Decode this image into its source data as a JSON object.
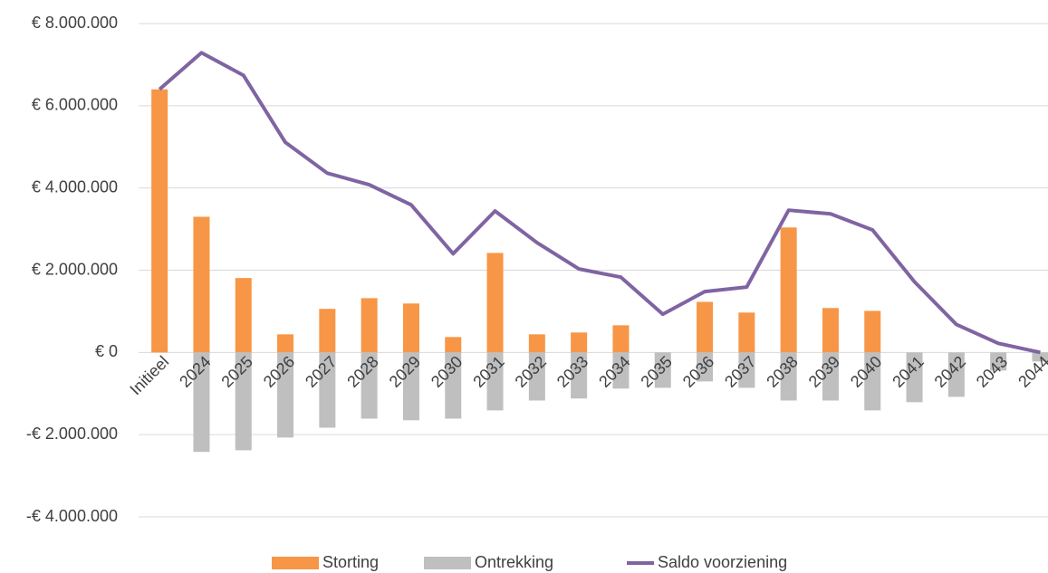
{
  "chart_data": {
    "type": "bar-line",
    "categories": [
      "Initieel",
      "2024",
      "2025",
      "2026",
      "2027",
      "2028",
      "2029",
      "2030",
      "2031",
      "2032",
      "2033",
      "2034",
      "2035",
      "2036",
      "2037",
      "2038",
      "2039",
      "2040",
      "2041",
      "2042",
      "2043",
      "2044"
    ],
    "series": [
      {
        "name": "Storting",
        "type": "bar",
        "color": "#f79646",
        "values": [
          6400000,
          3300000,
          1810000,
          440000,
          1060000,
          1320000,
          1190000,
          375000,
          2420000,
          440000,
          485000,
          660000,
          0,
          1230000,
          970000,
          3040000,
          1080000,
          1010000,
          0,
          0,
          0,
          0
        ]
      },
      {
        "name": "Ontrekking",
        "type": "bar",
        "color": "#bfbfbf",
        "values": [
          0,
          -2420000,
          -2380000,
          -2070000,
          -1830000,
          -1610000,
          -1650000,
          -1610000,
          -1410000,
          -1170000,
          -1120000,
          -880000,
          -860000,
          -705000,
          -860000,
          -1170000,
          -1170000,
          -1410000,
          -1210000,
          -1080000,
          -440000,
          -220000
        ]
      },
      {
        "name": "Saldo voorziening",
        "type": "line",
        "color": "#8064a2",
        "values": [
          6400000,
          7290000,
          6740000,
          5110000,
          4360000,
          4080000,
          3590000,
          2400000,
          3440000,
          2670000,
          2030000,
          1830000,
          930000,
          1480000,
          1590000,
          3460000,
          3370000,
          2980000,
          1720000,
          680000,
          220000,
          0
        ]
      }
    ],
    "ylim": [
      -4000000,
      8000000
    ],
    "yticks": [
      {
        "value": -4000000,
        "label": "-€ 4.000.000"
      },
      {
        "value": -2000000,
        "label": "-€ 2.000.000"
      },
      {
        "value": 0,
        "label": "€ 0"
      },
      {
        "value": 2000000,
        "label": "€ 2.000.000"
      },
      {
        "value": 4000000,
        "label": "€ 4.000.000"
      },
      {
        "value": 6000000,
        "label": "€ 6.000.000"
      },
      {
        "value": 8000000,
        "label": "€ 8.000.000"
      }
    ],
    "grid": true,
    "legend": "bottom"
  }
}
